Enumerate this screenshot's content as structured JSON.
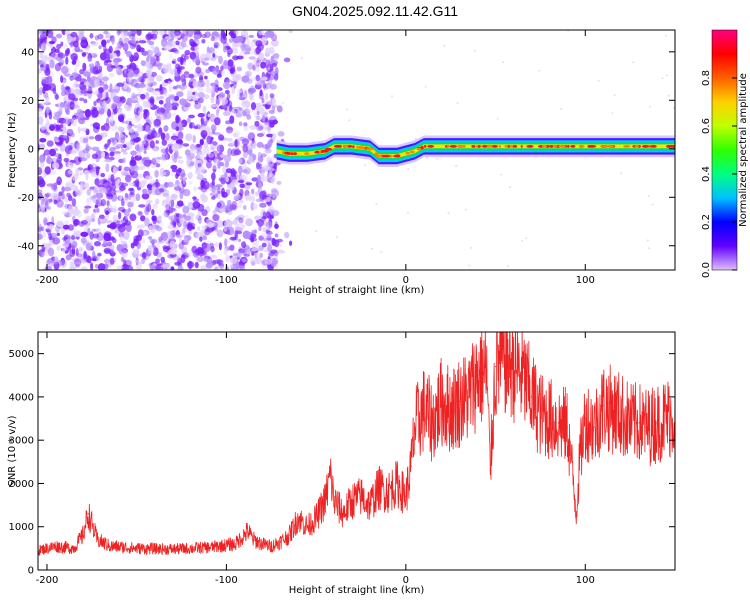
{
  "page": {
    "title": "GN04.2025.092.11.42.G11"
  },
  "chart_data": [
    {
      "type": "heatmap",
      "name": "spectrogram",
      "xlabel": "Height of straight line (km)",
      "ylabel": "Frequency (Hz)",
      "xlim": [
        -205,
        150
      ],
      "ylim": [
        -50,
        49
      ],
      "xticks": [
        -200,
        -100,
        0,
        100
      ],
      "yticks": [
        -40,
        -20,
        0,
        20,
        40
      ],
      "colorbar": {
        "label": "Normalized spectral amplitude",
        "range": [
          0,
          1
        ],
        "ticks": [
          0.0,
          0.2,
          0.4,
          0.6,
          0.8
        ],
        "colormap": [
          "#e0c0ff",
          "#6000ff",
          "#0000ff",
          "#00c0ff",
          "#00ff80",
          "#30ff00",
          "#c0ff00",
          "#ffd000",
          "#ff6000",
          "#ff0000",
          "#ff0080"
        ]
      },
      "noise_region": {
        "x_range": [
          -205,
          -72
        ],
        "dominant_color": "#7a1fff"
      },
      "signal_ridge": {
        "x": [
          -72,
          -65,
          -55,
          -45,
          -40,
          -30,
          -20,
          -15,
          -10,
          -5,
          0,
          5,
          10,
          20,
          40,
          60,
          80,
          100,
          120,
          150
        ],
        "y": [
          -1,
          -2,
          -2,
          -1,
          1,
          1,
          0,
          -3,
          -3,
          -3,
          -2,
          -1,
          1,
          1,
          1,
          1,
          1,
          1,
          1,
          1
        ]
      }
    },
    {
      "type": "line",
      "name": "snr",
      "xlabel": "Height of straight line (km)",
      "ylabel": "SNR (10 * v/v)",
      "xlim": [
        -205,
        150
      ],
      "ylim": [
        0,
        5500
      ],
      "xticks": [
        -200,
        -100,
        0,
        100
      ],
      "yticks": [
        0,
        1000,
        2000,
        3000,
        4000,
        5000
      ],
      "color": "#ee2222",
      "x": [
        -205,
        -195,
        -185,
        -180,
        -177,
        -172,
        -165,
        -150,
        -130,
        -110,
        -95,
        -88,
        -85,
        -80,
        -75,
        -70,
        -65,
        -60,
        -55,
        -50,
        -45,
        -42,
        -40,
        -35,
        -30,
        -25,
        -20,
        -15,
        -10,
        -5,
        0,
        3,
        5,
        10,
        15,
        20,
        25,
        30,
        35,
        40,
        45,
        47,
        50,
        55,
        60,
        65,
        70,
        75,
        80,
        85,
        90,
        93,
        95,
        97,
        100,
        105,
        110,
        115,
        120,
        125,
        130,
        135,
        140,
        145,
        150
      ],
      "y": [
        450,
        550,
        500,
        800,
        1300,
        700,
        550,
        500,
        480,
        520,
        600,
        900,
        700,
        600,
        550,
        650,
        800,
        1200,
        1000,
        1200,
        1600,
        2200,
        1600,
        1300,
        1600,
        1700,
        1500,
        1900,
        1800,
        2000,
        1700,
        2400,
        3300,
        3700,
        3400,
        3900,
        3700,
        3900,
        4000,
        4500,
        4600,
        2300,
        4700,
        4900,
        4700,
        4500,
        4000,
        3600,
        3500,
        3400,
        3300,
        2200,
        1300,
        2600,
        3500,
        3300,
        3800,
        3700,
        3600,
        3400,
        3400,
        3300,
        3400,
        3500,
        3600
      ]
    }
  ]
}
